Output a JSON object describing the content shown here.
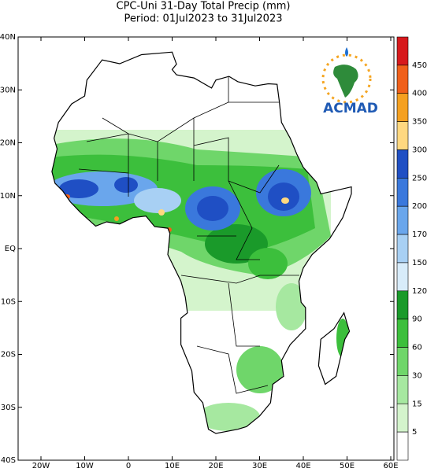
{
  "title": "CPC-Uni 31-Day Total Precip (mm)",
  "subtitle": "Period: 01Jul2023 to 31Jul2023",
  "logo": "ACMAD",
  "lat_labels": [
    "40N",
    "30N",
    "20N",
    "10N",
    "EQ",
    "10S",
    "20S",
    "30S",
    "40S"
  ],
  "lon_labels": [
    "20W",
    "10W",
    "0",
    "10E",
    "20E",
    "30E",
    "40E",
    "50E",
    "60E"
  ],
  "colorbar": {
    "levels": [
      450,
      400,
      350,
      300,
      250,
      200,
      170,
      150,
      120,
      90,
      60,
      30,
      15,
      5
    ],
    "colors": [
      "#d7191c",
      "#f0601a",
      "#f5a020",
      "#ffd880",
      "#1f4fc4",
      "#3a78dc",
      "#6aa6ec",
      "#a8d0f4",
      "#d8ecfa",
      "#1a9a2a",
      "#3cbf3c",
      "#6fd66a",
      "#a6e8a0",
      "#d4f4cc",
      "#ffffff"
    ]
  }
}
